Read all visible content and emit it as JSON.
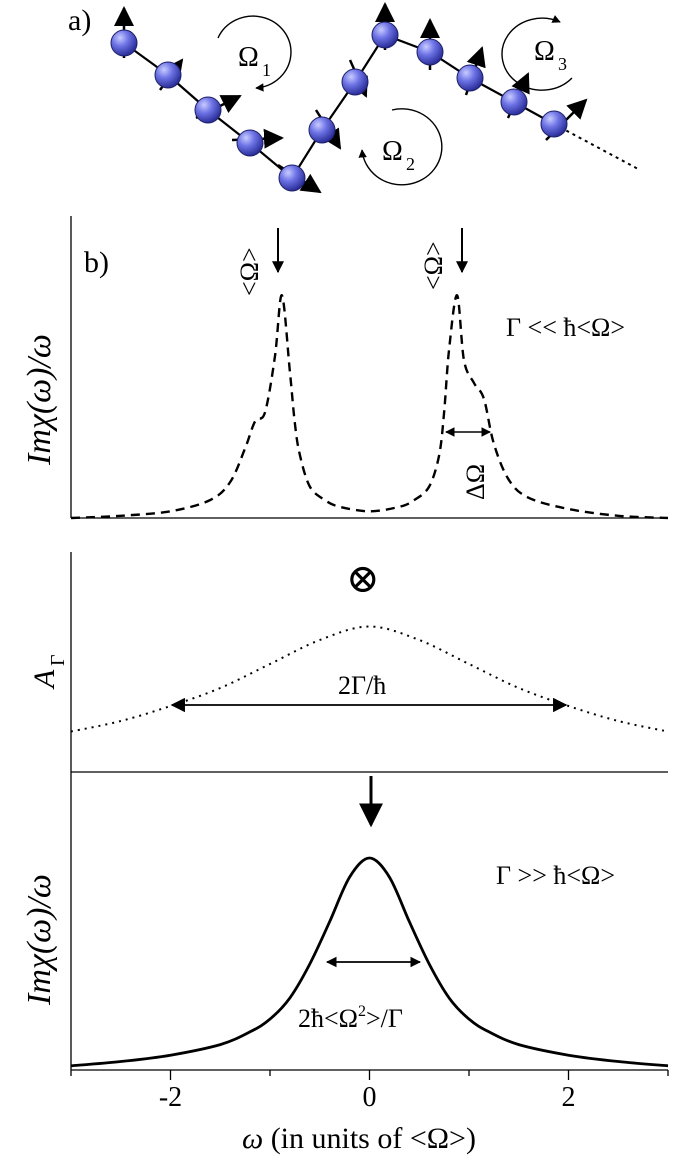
{
  "panel_a": {
    "label": "a)",
    "omega1": "Ω",
    "omega1_sub": "1",
    "omega2": "Ω",
    "omega2_sub": "2",
    "omega3": "Ω",
    "omega3_sub": "3"
  },
  "panel_b": {
    "label": "b)",
    "top_ylabel": "Imχ(ω)/ω",
    "peak_marker": "<Ω>",
    "regime_low": "Γ << ħ<Ω>",
    "delta_omega": "ΔΩ",
    "conv_symbol": "⊗",
    "middle_ylabel_main": "A",
    "middle_ylabel_sub": "Γ",
    "width_gamma": "2Γ/ħ",
    "bottom_ylabel": "Imχ(ω)/ω",
    "regime_high": "Γ >> ħ<Ω>",
    "width_narrow_pre": "2ħ<Ω",
    "width_narrow_sup": "2",
    "width_narrow_post": ">/Γ",
    "xlabel_var": "ω",
    "xlabel_rest": " (in units of <Ω>)"
  },
  "chart_data": [
    {
      "type": "line",
      "panel": "top",
      "style": "dashed",
      "ylabel": "Imχ(ω)/ω",
      "annotation": "Γ << ħ<Ω>",
      "xlim": [
        -3,
        3
      ],
      "ylim": [
        0,
        1
      ],
      "peaks_x": [
        -0.88,
        0.88
      ],
      "peak_width_label": "ΔΩ",
      "x": [
        -3,
        -2.5,
        -2,
        -1.6,
        -1.4,
        -1.25,
        -1.15,
        -1.05,
        -0.95,
        -0.88,
        -0.8,
        -0.75,
        -0.7,
        -0.6,
        -0.45,
        -0.3,
        0,
        0.3,
        0.45,
        0.6,
        0.7,
        0.75,
        0.8,
        0.88,
        0.95,
        1.05,
        1.15,
        1.25,
        1.4,
        1.6,
        2,
        2.5,
        3
      ],
      "y": [
        0.0,
        0.01,
        0.03,
        0.08,
        0.16,
        0.31,
        0.43,
        0.47,
        0.72,
        0.99,
        0.65,
        0.42,
        0.28,
        0.14,
        0.08,
        0.05,
        0.03,
        0.05,
        0.08,
        0.14,
        0.28,
        0.47,
        0.75,
        0.99,
        0.7,
        0.6,
        0.53,
        0.33,
        0.17,
        0.09,
        0.04,
        0.01,
        0.0
      ]
    },
    {
      "type": "line",
      "panel": "middle",
      "style": "dotted",
      "ylabel": "AΓ",
      "xlim": [
        -3,
        3
      ],
      "ylim": [
        0,
        1
      ],
      "center": 0,
      "width_annotation": "2Γ/ħ",
      "width_span": [
        -2,
        2
      ],
      "x": [
        -3,
        -2.5,
        -2,
        -1.5,
        -1,
        -0.5,
        0,
        0.5,
        1,
        1.5,
        2,
        2.5,
        3
      ],
      "y": [
        0.27,
        0.34,
        0.44,
        0.56,
        0.72,
        0.88,
        0.97,
        0.88,
        0.72,
        0.56,
        0.44,
        0.34,
        0.27
      ]
    },
    {
      "type": "line",
      "panel": "bottom",
      "style": "solid",
      "ylabel": "Imχ(ω)/ω",
      "xlabel": "ω (in units of <Ω>)",
      "annotation": "Γ >> ħ<Ω>",
      "xlim": [
        -3,
        3
      ],
      "ylim": [
        0,
        1
      ],
      "xticks": [
        -2,
        0,
        2
      ],
      "xtick_labels": [
        "-2",
        "0",
        "2"
      ],
      "width_annotation": "2ħ<Ω2>/Γ",
      "width_span": [
        -0.95,
        0.95
      ],
      "x": [
        -3,
        -2.5,
        -2,
        -1.5,
        -1.2,
        -1,
        -0.8,
        -0.6,
        -0.4,
        -0.2,
        0,
        0.2,
        0.4,
        0.6,
        0.8,
        1,
        1.2,
        1.5,
        2,
        2.5,
        3
      ],
      "y": [
        0.02,
        0.04,
        0.07,
        0.12,
        0.18,
        0.24,
        0.34,
        0.5,
        0.7,
        0.91,
        1.0,
        0.91,
        0.7,
        0.5,
        0.34,
        0.24,
        0.18,
        0.12,
        0.07,
        0.04,
        0.02
      ]
    }
  ]
}
